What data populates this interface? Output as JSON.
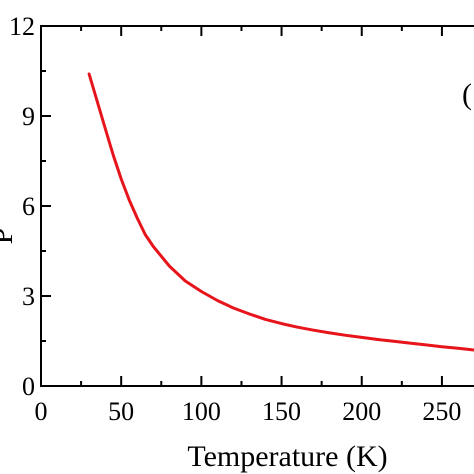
{
  "chart_data": {
    "type": "line",
    "title": "",
    "xlabel": "Temperature (K)",
    "ylabel": "P",
    "panel_label": "(",
    "xlim": [
      0,
      270
    ],
    "ylim": [
      0,
      12
    ],
    "xticks": [
      0,
      50,
      100,
      150,
      200,
      250
    ],
    "xtick_labels": [
      "0",
      "50",
      "100",
      "150",
      "200",
      "250"
    ],
    "yticks": [
      0,
      3,
      6,
      9,
      12
    ],
    "ytick_labels": [
      "0",
      "3",
      "6",
      "9",
      "12"
    ],
    "grid": false,
    "line_color": "#e8141c",
    "series": [
      {
        "x": [
          30,
          35,
          40,
          45,
          50,
          55,
          60,
          65,
          70,
          80,
          90,
          100,
          110,
          120,
          130,
          140,
          150,
          160,
          170,
          180,
          190,
          200,
          210,
          220,
          230,
          240,
          250,
          260,
          270
        ],
        "values": [
          10.4,
          9.5,
          8.6,
          7.7,
          6.9,
          6.2,
          5.6,
          5.05,
          4.65,
          4.0,
          3.5,
          3.15,
          2.85,
          2.6,
          2.4,
          2.22,
          2.08,
          1.96,
          1.86,
          1.77,
          1.69,
          1.62,
          1.55,
          1.49,
          1.43,
          1.37,
          1.31,
          1.26,
          1.2
        ]
      }
    ]
  }
}
